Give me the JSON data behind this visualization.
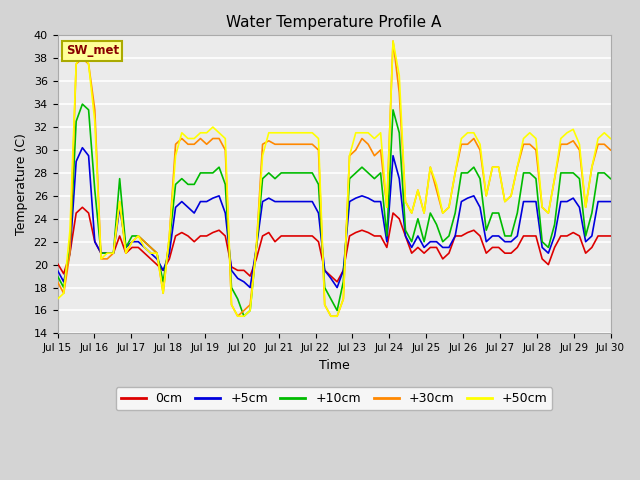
{
  "title": "Water Temperature Profile A",
  "xlabel": "Time",
  "ylabel": "Temperature (C)",
  "xlim": [
    0,
    15
  ],
  "ylim": [
    14,
    40
  ],
  "yticks": [
    14,
    16,
    18,
    20,
    22,
    24,
    26,
    28,
    30,
    32,
    34,
    36,
    38,
    40
  ],
  "xtick_labels": [
    "Jul 15",
    "Jul 16",
    "Jul 17",
    "Jul 18",
    "Jul 19",
    "Jul 20",
    "Jul 21",
    "Jul 22",
    "Jul 23",
    "Jul 24",
    "Jul 25",
    "Jul 26",
    "Jul 27",
    "Jul 28",
    "Jul 29",
    "Jul 30"
  ],
  "xtick_positions": [
    0,
    1,
    2,
    3,
    4,
    5,
    6,
    7,
    8,
    9,
    10,
    11,
    12,
    13,
    14,
    15
  ],
  "fig_bg": "#d4d4d4",
  "plot_bg": "#ebebeb",
  "grid_color": "#ffffff",
  "series": {
    "0cm": {
      "color": "#dd0000",
      "lw": 1.2
    },
    "+5cm": {
      "color": "#0000dd",
      "lw": 1.2
    },
    "+10cm": {
      "color": "#00bb00",
      "lw": 1.2
    },
    "+30cm": {
      "color": "#ff8800",
      "lw": 1.2
    },
    "+50cm": {
      "color": "#ffff00",
      "lw": 1.2
    }
  },
  "legend_label": "SW_met",
  "legend_box_color": "#ffff99",
  "legend_text_color": "#880000",
  "legend_border_color": "#aaaa00",
  "t_0cm": [
    20.1,
    19.2,
    21.0,
    24.5,
    25.0,
    24.5,
    22.0,
    21.0,
    21.0,
    21.0,
    22.5,
    21.0,
    21.5,
    21.5,
    21.0,
    20.5,
    20.0,
    19.5,
    20.5,
    22.5,
    22.8,
    22.5,
    22.0,
    22.5,
    22.5,
    22.8,
    23.0,
    22.5,
    19.8,
    19.5,
    19.5,
    19.0,
    20.5,
    22.5,
    22.8,
    22.0,
    22.5,
    22.5,
    22.5,
    22.5,
    22.5,
    22.5,
    22.0,
    19.5,
    19.0,
    18.5,
    19.5,
    22.5,
    22.8,
    23.0,
    22.8,
    22.5,
    22.5,
    21.5,
    24.5,
    24.0,
    22.5,
    21.0,
    21.5,
    21.0,
    21.5,
    21.5,
    20.5,
    21.0,
    22.5,
    22.5,
    22.8,
    23.0,
    22.5,
    21.0,
    21.5,
    21.5,
    21.0,
    21.0,
    21.5,
    22.5,
    22.5,
    22.5,
    20.5,
    20.0,
    21.5,
    22.5,
    22.5,
    22.8,
    22.5,
    21.0,
    21.5,
    22.5,
    22.5,
    22.5
  ],
  "t_5cm": [
    19.5,
    18.5,
    21.0,
    29.0,
    30.2,
    29.5,
    22.0,
    21.0,
    21.0,
    21.0,
    25.0,
    21.5,
    22.0,
    22.0,
    21.5,
    21.0,
    20.5,
    19.5,
    21.0,
    25.0,
    25.5,
    25.0,
    24.5,
    25.5,
    25.5,
    25.8,
    26.0,
    24.5,
    19.5,
    18.8,
    18.5,
    18.0,
    21.5,
    25.5,
    25.8,
    25.5,
    25.5,
    25.5,
    25.5,
    25.5,
    25.5,
    25.5,
    24.5,
    19.5,
    18.8,
    18.0,
    19.5,
    25.5,
    25.8,
    26.0,
    25.8,
    25.5,
    25.5,
    22.0,
    29.5,
    27.5,
    22.5,
    21.5,
    22.5,
    21.5,
    22.0,
    22.0,
    21.5,
    21.5,
    22.5,
    25.5,
    25.8,
    26.0,
    25.0,
    22.0,
    22.5,
    22.5,
    22.0,
    22.0,
    22.5,
    25.5,
    25.5,
    25.5,
    21.5,
    21.0,
    22.5,
    25.5,
    25.5,
    25.8,
    25.0,
    22.0,
    22.5,
    25.5,
    25.5,
    25.5
  ],
  "t_10cm": [
    19.0,
    18.0,
    21.5,
    32.5,
    34.0,
    33.5,
    26.5,
    21.0,
    21.0,
    21.0,
    27.5,
    21.5,
    22.5,
    22.5,
    22.0,
    21.5,
    21.0,
    18.5,
    22.0,
    27.0,
    27.5,
    27.0,
    27.0,
    28.0,
    28.0,
    28.0,
    28.5,
    27.0,
    18.0,
    17.0,
    15.5,
    16.0,
    21.5,
    27.5,
    28.0,
    27.5,
    28.0,
    28.0,
    28.0,
    28.0,
    28.0,
    28.0,
    27.0,
    18.0,
    17.0,
    16.0,
    18.5,
    27.5,
    28.0,
    28.5,
    28.0,
    27.5,
    28.0,
    22.5,
    33.5,
    31.5,
    23.0,
    22.0,
    24.0,
    22.0,
    24.5,
    23.5,
    22.0,
    22.5,
    24.5,
    28.0,
    28.0,
    28.5,
    27.5,
    23.0,
    24.5,
    24.5,
    22.5,
    22.5,
    24.5,
    28.0,
    28.0,
    27.5,
    22.0,
    21.5,
    23.5,
    28.0,
    28.0,
    28.0,
    27.5,
    22.5,
    24.5,
    28.0,
    28.0,
    27.5
  ],
  "t_30cm": [
    18.5,
    17.5,
    21.0,
    37.5,
    38.0,
    37.5,
    33.5,
    20.5,
    20.5,
    21.0,
    25.5,
    21.0,
    22.0,
    22.5,
    22.0,
    21.5,
    21.0,
    17.5,
    22.5,
    30.5,
    31.0,
    30.5,
    30.5,
    31.0,
    30.5,
    31.0,
    31.0,
    30.0,
    16.5,
    15.5,
    16.0,
    16.5,
    21.5,
    30.5,
    30.8,
    30.5,
    30.5,
    30.5,
    30.5,
    30.5,
    30.5,
    30.5,
    30.0,
    16.5,
    15.5,
    15.5,
    17.0,
    29.5,
    30.0,
    31.0,
    30.5,
    29.5,
    30.0,
    25.0,
    39.5,
    35.0,
    25.5,
    24.5,
    26.5,
    24.5,
    28.5,
    26.5,
    24.5,
    25.0,
    28.0,
    30.5,
    30.5,
    31.0,
    30.0,
    26.0,
    28.5,
    28.5,
    25.5,
    26.0,
    28.5,
    30.5,
    30.5,
    30.0,
    25.0,
    24.5,
    27.5,
    30.5,
    30.5,
    30.8,
    30.0,
    25.0,
    28.5,
    30.5,
    30.5,
    30.0
  ],
  "t_50cm": [
    17.0,
    17.5,
    23.0,
    37.5,
    38.5,
    37.5,
    32.5,
    20.5,
    21.0,
    21.0,
    25.5,
    21.0,
    22.0,
    22.5,
    21.5,
    21.0,
    21.0,
    17.5,
    22.5,
    29.5,
    31.5,
    31.0,
    31.0,
    31.5,
    31.5,
    32.0,
    31.5,
    31.0,
    16.5,
    15.5,
    15.5,
    16.0,
    21.5,
    29.5,
    31.5,
    31.5,
    31.5,
    31.5,
    31.5,
    31.5,
    31.5,
    31.5,
    31.0,
    16.5,
    15.5,
    15.5,
    17.0,
    29.5,
    31.5,
    31.5,
    31.5,
    31.0,
    31.5,
    25.0,
    39.5,
    36.5,
    25.5,
    24.5,
    26.5,
    24.5,
    28.5,
    27.0,
    24.5,
    25.0,
    28.0,
    31.0,
    31.5,
    31.5,
    30.5,
    26.0,
    28.5,
    28.5,
    25.5,
    26.0,
    28.5,
    31.0,
    31.5,
    31.0,
    25.0,
    24.5,
    27.5,
    31.0,
    31.5,
    31.8,
    30.5,
    25.0,
    28.5,
    31.0,
    31.5,
    31.0
  ]
}
